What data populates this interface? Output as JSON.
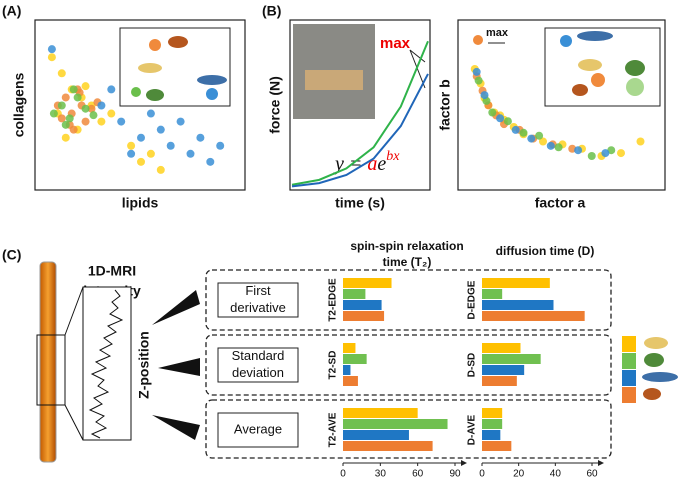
{
  "panel_a": {
    "label": "(A)",
    "x_label": "lipids",
    "y_label": "collagens",
    "chart_data": {
      "type": "scatter",
      "xlim": [
        0,
        100
      ],
      "ylim": [
        0,
        100
      ],
      "series": [
        {
          "color": "#ffd21f",
          "x": [
            5,
            10,
            15,
            20,
            25,
            8,
            30,
            45,
            55,
            60,
            12,
            18,
            22,
            50,
            35
          ],
          "values": [
            80,
            70,
            60,
            55,
            50,
            45,
            40,
            25,
            20,
            10,
            30,
            35,
            62,
            15,
            45
          ]
        },
        {
          "color": "#f08a3c",
          "x": [
            8,
            12,
            15,
            18,
            20,
            22,
            25,
            10,
            14,
            28,
            16,
            19
          ],
          "values": [
            50,
            55,
            45,
            60,
            50,
            40,
            48,
            42,
            38,
            52,
            35,
            58
          ]
        },
        {
          "color": "#6abf4b",
          "x": [
            6,
            10,
            14,
            18,
            22,
            26,
            12,
            16
          ],
          "values": [
            45,
            50,
            42,
            55,
            48,
            44,
            38,
            60
          ]
        },
        {
          "color": "#3a8fd6",
          "x": [
            5,
            30,
            40,
            50,
            60,
            65,
            70,
            75,
            80,
            85,
            90,
            55,
            45,
            35
          ],
          "values": [
            85,
            50,
            40,
            30,
            35,
            25,
            40,
            20,
            30,
            15,
            25,
            45,
            20,
            60
          ]
        }
      ]
    }
  },
  "panel_b": {
    "label": "(B)",
    "x_label": "time (s)",
    "y_label": "force (N)",
    "annotation": "max",
    "equation": {
      "lhs": "y = ",
      "coef": "a",
      "base": "e",
      "exponent": "bx"
    },
    "chart_data": {
      "type": "line",
      "xlim": [
        0,
        100
      ],
      "ylim": [
        0,
        100
      ],
      "x": [
        0,
        20,
        40,
        60,
        80,
        100
      ],
      "series": [
        {
          "color": "#2fb34a",
          "values": [
            2,
            5,
            12,
            25,
            50,
            90
          ]
        },
        {
          "color": "#2066b8",
          "values": [
            1,
            3,
            8,
            18,
            38,
            70
          ]
        }
      ]
    }
  },
  "panel_b2": {
    "x_label": "factor a",
    "y_label": "factor b",
    "annotation": "max",
    "chart_data": {
      "type": "scatter",
      "xlim": [
        0,
        100
      ],
      "ylim": [
        0,
        100
      ],
      "series": [
        {
          "color": "#ffd21f",
          "x": [
            5,
            8,
            10,
            15,
            20,
            25,
            30,
            40,
            50,
            60,
            70,
            80,
            90,
            12,
            18
          ],
          "values": [
            80,
            70,
            60,
            50,
            45,
            40,
            35,
            30,
            28,
            25,
            20,
            22,
            30,
            55,
            48
          ]
        },
        {
          "color": "#f08a3c",
          "x": [
            6,
            9,
            12,
            16,
            20,
            28,
            35,
            45,
            55
          ],
          "values": [
            75,
            65,
            55,
            48,
            42,
            38,
            32,
            28,
            25
          ]
        },
        {
          "color": "#6abf4b",
          "x": [
            7,
            11,
            14,
            22,
            30,
            38,
            48,
            65,
            75
          ],
          "values": [
            72,
            58,
            50,
            44,
            36,
            34,
            26,
            20,
            24
          ]
        },
        {
          "color": "#3a8fd6",
          "x": [
            6,
            10,
            18,
            26,
            34,
            44,
            58,
            72
          ],
          "values": [
            78,
            62,
            46,
            38,
            32,
            27,
            24,
            22
          ]
        }
      ]
    }
  },
  "panel_c": {
    "label": "(C)",
    "mri_label": [
      "1D-MRI",
      "intensity"
    ],
    "z_label": "Z-position",
    "features": [
      "First\nderivative",
      "Standard\ndeviation",
      "Average"
    ],
    "colors": [
      "#ffc000",
      "#70c050",
      "#1f77c4",
      "#ed7d31"
    ],
    "charts": [
      {
        "type": "bar",
        "title": [
          "spin-spin relaxation",
          "time (T₂)"
        ],
        "xlim": [
          0,
          90
        ],
        "xticks": [
          0,
          30,
          60,
          90
        ],
        "groups": [
          {
            "label": "T2-EDGE",
            "values": [
              39,
              18,
              31,
              33
            ]
          },
          {
            "label": "T2-SD",
            "values": [
              10,
              19,
              6,
              12
            ]
          },
          {
            "label": "T2-AVE",
            "values": [
              60,
              84,
              53,
              72
            ]
          }
        ]
      },
      {
        "type": "bar",
        "title": [
          "diffusion time (D)"
        ],
        "xlim": [
          0,
          60
        ],
        "xticks": [
          0,
          20,
          40,
          60
        ],
        "groups": [
          {
            "label": "D-EDGE",
            "values": [
              37,
              11,
              39,
              56
            ]
          },
          {
            "label": "D-SD",
            "values": [
              21,
              32,
              23,
              19
            ]
          },
          {
            "label": "D-AVE",
            "values": [
              11,
              11,
              10,
              16
            ]
          }
        ]
      }
    ]
  }
}
